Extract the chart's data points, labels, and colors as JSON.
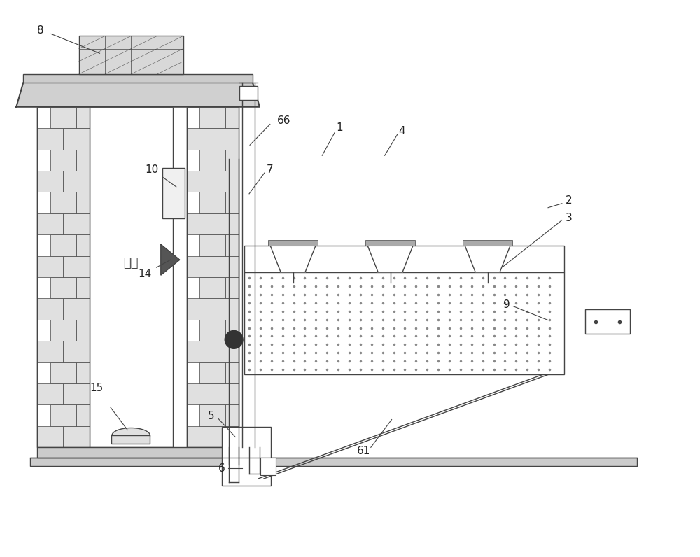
{
  "line_color": "#444444",
  "label_color": "#333333",
  "brick_light": "#e8e8e8",
  "roof_gray": "#cccccc",
  "dot_color": "#999999",
  "bowl_gray": "#aaaaaa",
  "fig_w": 10.0,
  "fig_h": 7.96,
  "dpi": 100
}
